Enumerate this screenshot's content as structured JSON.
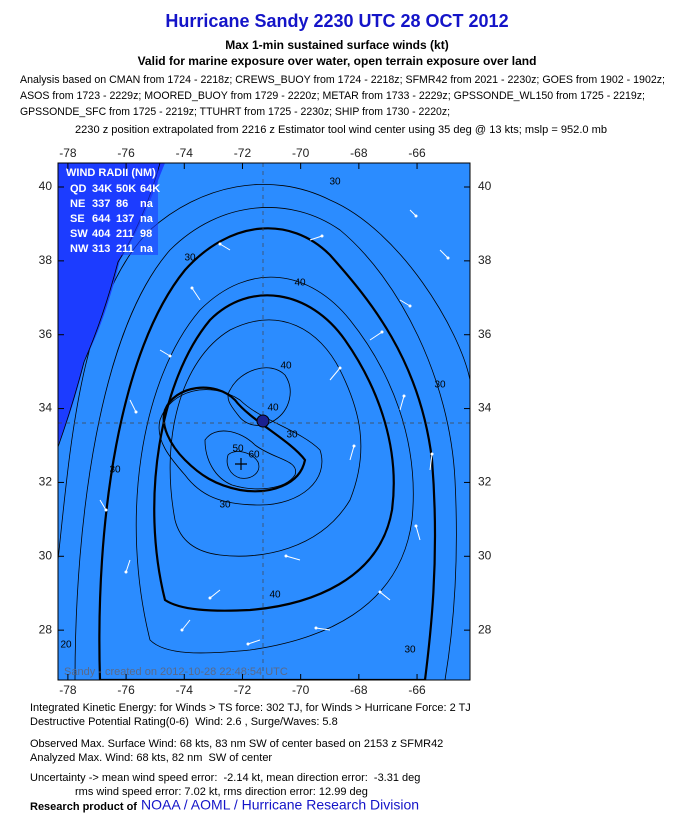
{
  "header": {
    "title": "Hurricane Sandy 2230 UTC 28 OCT 2012",
    "subtitle": "Max 1-min sustained surface winds (kt)",
    "validity": "Valid for marine exposure over water, open terrain exposure over land",
    "analysis_lines": [
      "Analysis based on CMAN from 1724 - 2218z; CREWS_BUOY from 1724 - 2218z; SFMR42 from 2021 - 2230z; GOES from 1902 - 1902z;",
      "ASOS from 1723 - 2229z; MOORED_BUOY from 1729 - 2220z; METAR from 1733 - 2229z; GPSSONDE_WL150 from 1725 - 2219z;",
      "GPSSONDE_SFC from 1725 - 2219z; TTUHRT from 1725 - 2230z; SHIP from 1730 - 2220z;"
    ],
    "position_note": "2230 z position extrapolated from 2216 z Estimator tool wind center using 35 deg @ 13 kts; mslp = 952.0 mb"
  },
  "map": {
    "lon_range": [
      -78.34,
      -64.18
    ],
    "lat_range": [
      26.65,
      40.65
    ],
    "lon_ticks": [
      -78,
      -76,
      -74,
      -72,
      -70,
      -68,
      -66
    ],
    "lat_ticks": [
      28,
      30,
      32,
      34,
      36,
      38,
      40
    ],
    "wind_radii": {
      "title": "WIND RADII (NM)",
      "rows": [
        [
          "QD",
          "34K",
          "50K",
          "64K"
        ],
        [
          "NE",
          "337",
          "86",
          "na"
        ],
        [
          "SE",
          "644",
          "137",
          "na"
        ],
        [
          "SW",
          "404",
          "211",
          "98"
        ],
        [
          "NW",
          "313",
          "211",
          "na"
        ]
      ]
    },
    "contour_labels": [
      "30",
      "30",
      "40",
      "40",
      "40",
      "30",
      "30",
      "30",
      "30",
      "20",
      "50",
      "60",
      "40",
      "30"
    ],
    "credit": "Sandy - created on 2012-10-28 22:48:54 UTC"
  },
  "footer": {
    "lines": [
      "Integrated Kinetic Energy: for Winds > TS force: 302 TJ, for Winds > Hurricane Force: 2 TJ",
      "Destructive Potential Rating(0-6)  Wind: 2.6 , Surge/Waves: 5.8",
      "Observed Max. Surface Wind: 68 kts, 83 nm SW of center based on 2153 z SFMR42",
      "Analyzed Max. Wind: 68 kts, 82 nm  SW of center",
      "Uncertainty -> mean wind speed error:  -2.14 kt, mean direction error:  -3.31 deg",
      "rms wind speed error: 7.02 kt, rms direction error: 12.99 deg"
    ],
    "research_label": "Research product of",
    "organization": "NOAA / AOML / Hurricane Research Division"
  }
}
